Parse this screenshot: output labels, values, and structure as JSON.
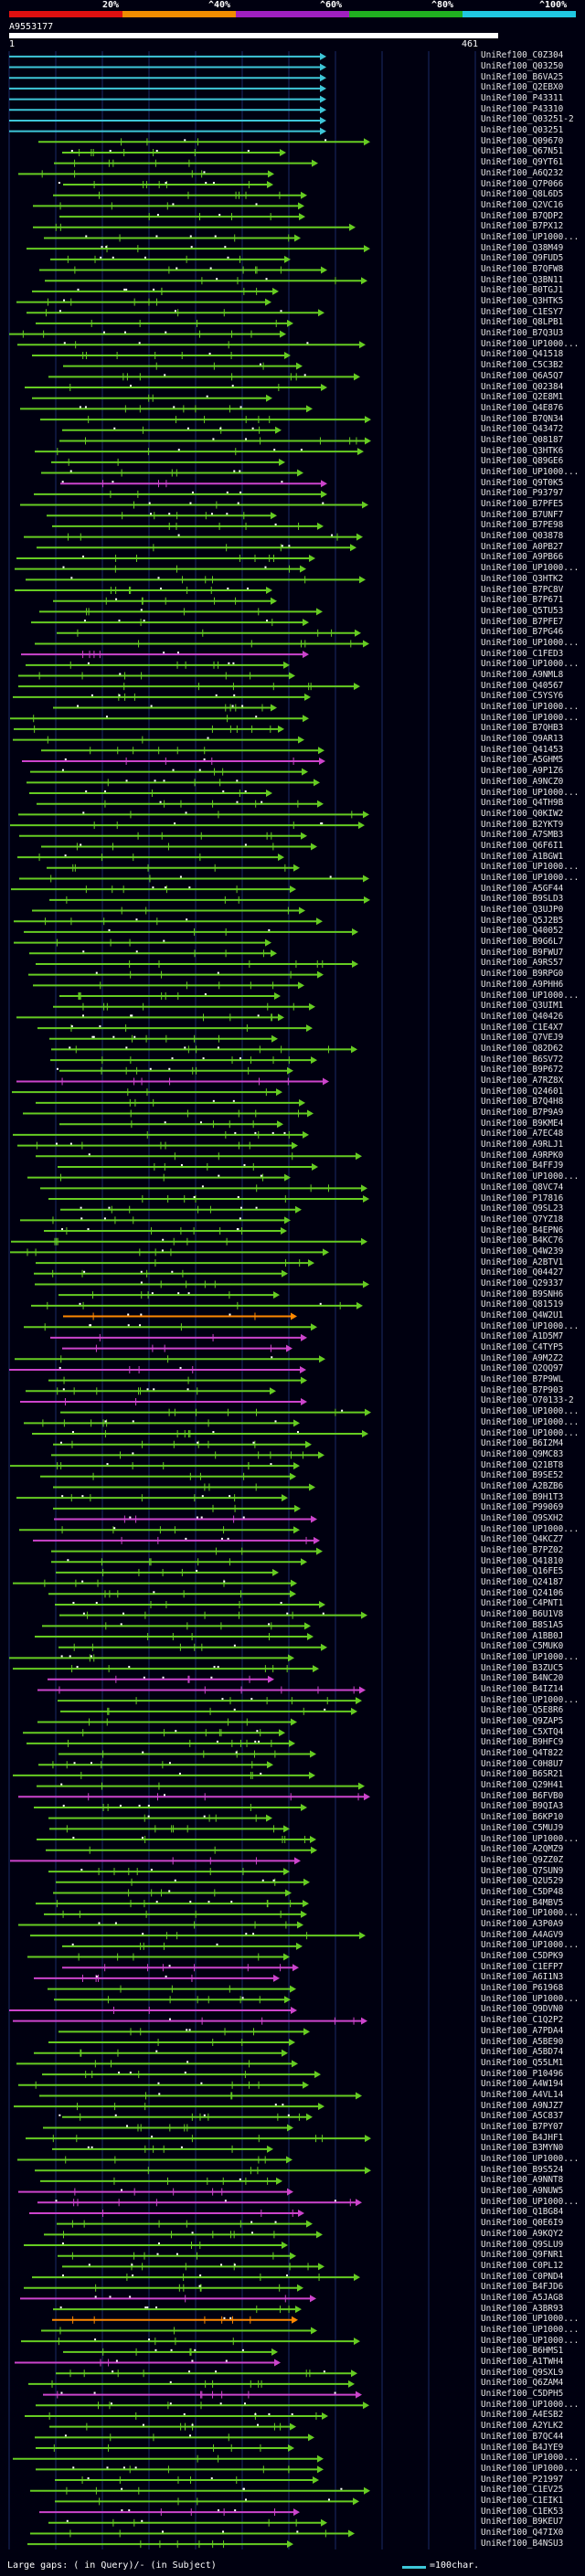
{
  "header": {
    "scale_labels": [
      "20%",
      "^40%",
      "^60%",
      "^80%",
      "^100%"
    ],
    "scale_colors": [
      "#e01010",
      "#f08c00",
      "#a020c0",
      "#20b020",
      "#20c8e0"
    ],
    "query_id": "A9553177",
    "ruler_start": "1",
    "ruler_end": "461"
  },
  "footer": {
    "note": "Large gaps: ( in Query)/- (in Subject)",
    "legend": "=100char."
  },
  "colors": {
    "identity_100": "#3ec6d8",
    "identity_80": "#66cc22",
    "identity_60": "#cc44cc",
    "identity_40": "#ff8800",
    "gridline": "#1a2a66"
  },
  "hits": [
    {
      "label": "UniRef100_C0Z304",
      "color": "cyan"
    },
    {
      "label": "UniRef100_Q03250",
      "color": "cyan"
    },
    {
      "label": "UniRef100_B6VA25",
      "color": "cyan"
    },
    {
      "label": "UniRef100_Q2EBX0",
      "color": "cyan"
    },
    {
      "label": "UniRef100_P43311",
      "color": "cyan"
    },
    {
      "label": "UniRef100_P43310",
      "color": "cyan"
    },
    {
      "label": "UniRef100_Q03251-2",
      "color": "cyan"
    },
    {
      "label": "UniRef100_Q03251",
      "color": "cyan"
    },
    {
      "label": "UniRef100_Q09670",
      "color": "green"
    },
    {
      "label": "UniRef100_Q67N51",
      "color": "green"
    },
    {
      "label": "UniRef100_Q9YT61",
      "color": "green"
    },
    {
      "label": "UniRef100_A6Q232",
      "color": "green"
    },
    {
      "label": "UniRef100_Q7P066",
      "color": "green"
    },
    {
      "label": "UniRef100_Q8L6D5",
      "color": "green"
    },
    {
      "label": "UniRef100_Q2VC16",
      "color": "green"
    },
    {
      "label": "UniRef100_B7QDP2",
      "color": "green"
    },
    {
      "label": "UniRef100_B7PX12",
      "color": "green"
    },
    {
      "label": "UniRef100_UP1000...",
      "color": "green"
    },
    {
      "label": "UniRef100_Q38M49",
      "color": "green"
    },
    {
      "label": "UniRef100_Q9FUD5",
      "color": "green"
    },
    {
      "label": "UniRef100_B7QFW8",
      "color": "green"
    },
    {
      "label": "UniRef100_Q3BN11",
      "color": "green"
    },
    {
      "label": "UniRef100_B0TGJ1",
      "color": "green"
    },
    {
      "label": "UniRef100_Q3HTK5",
      "color": "green"
    },
    {
      "label": "UniRef100_C1ESY7",
      "color": "green"
    },
    {
      "label": "UniRef100_Q8LPB1",
      "color": "green"
    },
    {
      "label": "UniRef100_B7Q3U3",
      "color": "green"
    },
    {
      "label": "UniRef100_UP1000...",
      "color": "green"
    },
    {
      "label": "UniRef100_Q41518",
      "color": "green"
    },
    {
      "label": "UniRef100_C5C3B2",
      "color": "green"
    },
    {
      "label": "UniRef100_Q6A5Q7",
      "color": "green"
    },
    {
      "label": "UniRef100_Q02384",
      "color": "green"
    },
    {
      "label": "UniRef100_Q2E8M1",
      "color": "green"
    },
    {
      "label": "UniRef100_Q4E876",
      "color": "green"
    },
    {
      "label": "UniRef100_B7QN34",
      "color": "green"
    },
    {
      "label": "UniRef100_Q43472",
      "color": "green"
    },
    {
      "label": "UniRef100_Q08187",
      "color": "green"
    },
    {
      "label": "UniRef100_Q3HTK6",
      "color": "green"
    },
    {
      "label": "UniRef100_Q89GE6",
      "color": "green"
    },
    {
      "label": "UniRef100_UP1000...",
      "color": "green"
    },
    {
      "label": "UniRef100_Q9T0K5",
      "color": "magenta"
    },
    {
      "label": "UniRef100_P93797",
      "color": "green"
    },
    {
      "label": "UniRef100_B7PFE5",
      "color": "green"
    },
    {
      "label": "UniRef100_B7UNF7",
      "color": "green"
    },
    {
      "label": "UniRef100_B7PE98",
      "color": "green"
    },
    {
      "label": "UniRef100_Q03878",
      "color": "green"
    },
    {
      "label": "UniRef100_A0PB27",
      "color": "green"
    },
    {
      "label": "UniRef100_A9PB66",
      "color": "green"
    },
    {
      "label": "UniRef100_UP1000...",
      "color": "green"
    },
    {
      "label": "UniRef100_Q3HTK2",
      "color": "green"
    },
    {
      "label": "UniRef100_B7PC8V",
      "color": "green"
    },
    {
      "label": "UniRef100_B7P671",
      "color": "green"
    },
    {
      "label": "UniRef100_Q5TU53",
      "color": "green"
    },
    {
      "label": "UniRef100_B7PFE7",
      "color": "green"
    },
    {
      "label": "UniRef100_B7PG46",
      "color": "green"
    },
    {
      "label": "UniRef100_UP1000...",
      "color": "green"
    },
    {
      "label": "UniRef100_C1FED3",
      "color": "magenta"
    },
    {
      "label": "UniRef100_UP1000...",
      "color": "green"
    },
    {
      "label": "UniRef100_A9NML8",
      "color": "green"
    },
    {
      "label": "UniRef100_Q40567",
      "color": "green"
    },
    {
      "label": "UniRef100_C5YSY6",
      "color": "green"
    },
    {
      "label": "UniRef100_UP1000...",
      "color": "green"
    },
    {
      "label": "UniRef100_UP1000...",
      "color": "green"
    },
    {
      "label": "UniRef100_B7QHB3",
      "color": "green"
    },
    {
      "label": "UniRef100_Q9AR13",
      "color": "green"
    },
    {
      "label": "UniRef100_Q41453",
      "color": "green"
    },
    {
      "label": "UniRef100_A5GHM5",
      "color": "magenta"
    },
    {
      "label": "UniRef100_A9P1Z6",
      "color": "green"
    },
    {
      "label": "UniRef100_A9NCZ0",
      "color": "green"
    },
    {
      "label": "UniRef100_UP1000...",
      "color": "green"
    },
    {
      "label": "UniRef100_Q4TH9B",
      "color": "green"
    },
    {
      "label": "UniRef100_Q0KIW2",
      "color": "green"
    },
    {
      "label": "UniRef100_B2YKT9",
      "color": "green"
    },
    {
      "label": "UniRef100_A7SMB3",
      "color": "green"
    },
    {
      "label": "UniRef100_Q6F6I1",
      "color": "green"
    },
    {
      "label": "UniRef100_A1BGW1",
      "color": "green"
    },
    {
      "label": "UniRef100_UP1000...",
      "color": "green"
    },
    {
      "label": "UniRef100_UP1000...",
      "color": "green"
    },
    {
      "label": "UniRef100_A5GF44",
      "color": "green"
    },
    {
      "label": "UniRef100_B9SLD3",
      "color": "green"
    },
    {
      "label": "UniRef100_Q3UJP0",
      "color": "green"
    },
    {
      "label": "UniRef100_Q5J2B5",
      "color": "green"
    },
    {
      "label": "UniRef100_Q40052",
      "color": "green"
    },
    {
      "label": "UniRef100_B9G6L7",
      "color": "green"
    },
    {
      "label": "UniRef100_B9FWU7",
      "color": "green"
    },
    {
      "label": "UniRef100_A9RS57",
      "color": "green"
    },
    {
      "label": "UniRef100_B9RPG0",
      "color": "green"
    },
    {
      "label": "UniRef100_A9PHH6",
      "color": "green"
    },
    {
      "label": "UniRef100_UP1000...",
      "color": "green"
    },
    {
      "label": "UniRef100_Q3UIM1",
      "color": "green"
    },
    {
      "label": "UniRef100_Q40426",
      "color": "green"
    },
    {
      "label": "UniRef100_C1E4X7",
      "color": "green"
    },
    {
      "label": "UniRef100_Q7VEJ9",
      "color": "green"
    },
    {
      "label": "UniRef100_Q82D62",
      "color": "green"
    },
    {
      "label": "UniRef100_B6SV72",
      "color": "green"
    },
    {
      "label": "UniRef100_B9P672",
      "color": "green"
    },
    {
      "label": "UniRef100_A7RZ8X",
      "color": "magenta"
    },
    {
      "label": "UniRef100_Q24601",
      "color": "green"
    },
    {
      "label": "UniRef100_B7Q4H8",
      "color": "green"
    },
    {
      "label": "UniRef100_B7P9A9",
      "color": "green"
    },
    {
      "label": "UniRef100_B9KME4",
      "color": "green"
    },
    {
      "label": "UniRef100_A7EC48",
      "color": "green"
    },
    {
      "label": "UniRef100_A9RLJ1",
      "color": "green"
    },
    {
      "label": "UniRef100_A9RPK0",
      "color": "green"
    },
    {
      "label": "UniRef100_B4FFJ9",
      "color": "green"
    },
    {
      "label": "UniRef100_UP1000...",
      "color": "green"
    },
    {
      "label": "UniRef100_Q8VC74",
      "color": "green"
    },
    {
      "label": "UniRef100_P17816",
      "color": "green"
    },
    {
      "label": "UniRef100_Q9SL23",
      "color": "green"
    },
    {
      "label": "UniRef100_Q7YZ18",
      "color": "green"
    },
    {
      "label": "UniRef100_B4EPN6",
      "color": "green"
    },
    {
      "label": "UniRef100_B4KC76",
      "color": "green"
    },
    {
      "label": "UniRef100_Q4W239",
      "color": "green"
    },
    {
      "label": "UniRef100_A2BTV1",
      "color": "green"
    },
    {
      "label": "UniRef100_Q04427",
      "color": "green"
    },
    {
      "label": "UniRef100_Q29337",
      "color": "green"
    },
    {
      "label": "UniRef100_B9SNH6",
      "color": "green"
    },
    {
      "label": "UniRef100_Q81519",
      "color": "green"
    },
    {
      "label": "UniRef100_Q4W2U1",
      "color": "orange"
    },
    {
      "label": "UniRef100_UP1000...",
      "color": "green"
    },
    {
      "label": "UniRef100_A1D5M7",
      "color": "magenta"
    },
    {
      "label": "UniRef100_C4TYP5",
      "color": "magenta"
    },
    {
      "label": "UniRef100_A9M2Z2",
      "color": "green"
    },
    {
      "label": "UniRef100_Q2QQ97",
      "color": "magenta"
    },
    {
      "label": "UniRef100_B7P9WL",
      "color": "green"
    },
    {
      "label": "UniRef100_B7P903",
      "color": "green"
    },
    {
      "label": "UniRef100_O70133-2",
      "color": "magenta"
    },
    {
      "label": "UniRef100_UP1000...",
      "color": "green"
    },
    {
      "label": "UniRef100_UP1000...",
      "color": "green"
    },
    {
      "label": "UniRef100_UP1000...",
      "color": "green"
    },
    {
      "label": "UniRef100_B6I2M4",
      "color": "green"
    },
    {
      "label": "UniRef100_Q9MC83",
      "color": "green"
    },
    {
      "label": "UniRef100_Q21BT8",
      "color": "green"
    },
    {
      "label": "UniRef100_B9SE52",
      "color": "green"
    },
    {
      "label": "UniRef100_A2BZB6",
      "color": "green"
    },
    {
      "label": "UniRef100_B9H1T3",
      "color": "green"
    },
    {
      "label": "UniRef100_P99069",
      "color": "green"
    },
    {
      "label": "UniRef100_Q9SXH2",
      "color": "magenta"
    },
    {
      "label": "UniRef100_UP1000...",
      "color": "green"
    },
    {
      "label": "UniRef100_Q4KCZ7",
      "color": "magenta"
    },
    {
      "label": "UniRef100_B7PZ02",
      "color": "green"
    },
    {
      "label": "UniRef100_Q41810",
      "color": "green"
    },
    {
      "label": "UniRef100_Q16FE5",
      "color": "green"
    },
    {
      "label": "UniRef100_Q24187",
      "color": "green"
    },
    {
      "label": "UniRef100_Q24106",
      "color": "green"
    },
    {
      "label": "UniRef100_C4PNT1",
      "color": "green"
    },
    {
      "label": "UniRef100_B6U1V8",
      "color": "green"
    },
    {
      "label": "UniRef100_B8S1A5",
      "color": "green"
    },
    {
      "label": "UniRef100_A1BB0J",
      "color": "green"
    },
    {
      "label": "UniRef100_C5MUK0",
      "color": "green"
    },
    {
      "label": "UniRef100_UP1000...",
      "color": "green"
    },
    {
      "label": "UniRef100_B3ZUC5",
      "color": "green"
    },
    {
      "label": "UniRef100_B4NC20",
      "color": "magenta"
    },
    {
      "label": "UniRef100_B4IZ14",
      "color": "magenta"
    },
    {
      "label": "UniRef100_UP1000...",
      "color": "green"
    },
    {
      "label": "UniRef100_Q5E8R6",
      "color": "green"
    },
    {
      "label": "UniRef100_Q9ZAP5",
      "color": "green"
    },
    {
      "label": "UniRef100_C5XTQ4",
      "color": "green"
    },
    {
      "label": "UniRef100_B9HFC9",
      "color": "green"
    },
    {
      "label": "UniRef100_Q4T822",
      "color": "green"
    },
    {
      "label": "UniRef100_C0H8U7",
      "color": "green"
    },
    {
      "label": "UniRef100_B6SR21",
      "color": "green"
    },
    {
      "label": "UniRef100_Q29H41",
      "color": "green"
    },
    {
      "label": "UniRef100_B6FVB0",
      "color": "magenta"
    },
    {
      "label": "UniRef100_B9QIA3",
      "color": "green"
    },
    {
      "label": "UniRef100_B6KP10",
      "color": "green"
    },
    {
      "label": "UniRef100_C5MUJ9",
      "color": "green"
    },
    {
      "label": "UniRef100_UP1000...",
      "color": "green"
    },
    {
      "label": "UniRef100_A2QMZ9",
      "color": "green"
    },
    {
      "label": "UniRef100_Q9ZZ0Z",
      "color": "magenta"
    },
    {
      "label": "UniRef100_Q7SUN9",
      "color": "green"
    },
    {
      "label": "UniRef100_Q2U529",
      "color": "green"
    },
    {
      "label": "UniRef100_C5DP48",
      "color": "green"
    },
    {
      "label": "UniRef100_B4MBV5",
      "color": "green"
    },
    {
      "label": "UniRef100_UP1000...",
      "color": "green"
    },
    {
      "label": "UniRef100_A3P0A9",
      "color": "green"
    },
    {
      "label": "UniRef100_A4AGV9",
      "color": "green"
    },
    {
      "label": "UniRef100_UP1000...",
      "color": "green"
    },
    {
      "label": "UniRef100_C5DPK9",
      "color": "green"
    },
    {
      "label": "UniRef100_C1EFP7",
      "color": "magenta"
    },
    {
      "label": "UniRef100_A6I1N3",
      "color": "magenta"
    },
    {
      "label": "UniRef100_P61968",
      "color": "green"
    },
    {
      "label": "UniRef100_UP1000...",
      "color": "green"
    },
    {
      "label": "UniRef100_Q9DVN0",
      "color": "magenta"
    },
    {
      "label": "UniRef100_C1Q2P2",
      "color": "magenta"
    },
    {
      "label": "UniRef100_A7PDA4",
      "color": "green"
    },
    {
      "label": "UniRef100_A5BE90",
      "color": "green"
    },
    {
      "label": "UniRef100_A5BD74",
      "color": "green"
    },
    {
      "label": "UniRef100_Q55LM1",
      "color": "green"
    },
    {
      "label": "UniRef100_P10496",
      "color": "green"
    },
    {
      "label": "UniRef100_A4W194",
      "color": "green"
    },
    {
      "label": "UniRef100_A4VL14",
      "color": "green"
    },
    {
      "label": "UniRef100_A9NJZ7",
      "color": "green"
    },
    {
      "label": "UniRef100_A5C837",
      "color": "green"
    },
    {
      "label": "UniRef100_B7PY07",
      "color": "green"
    },
    {
      "label": "UniRef100_B4JHF1",
      "color": "green"
    },
    {
      "label": "UniRef100_B3MYN0",
      "color": "green"
    },
    {
      "label": "UniRef100_UP1000...",
      "color": "green"
    },
    {
      "label": "UniRef100_B9S524",
      "color": "green"
    },
    {
      "label": "UniRef100_A9NNT8",
      "color": "green"
    },
    {
      "label": "UniRef100_A9NUW5",
      "color": "magenta"
    },
    {
      "label": "UniRef100_UP1000...",
      "color": "magenta"
    },
    {
      "label": "UniRef100_Q1BG84",
      "color": "magenta"
    },
    {
      "label": "UniRef100_Q0E6I9",
      "color": "green"
    },
    {
      "label": "UniRef100_A9KQY2",
      "color": "green"
    },
    {
      "label": "UniRef100_Q9SLU9",
      "color": "green"
    },
    {
      "label": "UniRef100_Q9FNR1",
      "color": "green"
    },
    {
      "label": "UniRef100_C0PL12",
      "color": "green"
    },
    {
      "label": "UniRef100_C0PND4",
      "color": "green"
    },
    {
      "label": "UniRef100_B4FJD6",
      "color": "green"
    },
    {
      "label": "UniRef100_A5JAG8",
      "color": "magenta"
    },
    {
      "label": "UniRef100_A3BR93",
      "color": "green"
    },
    {
      "label": "UniRef100_UP1000...",
      "color": "orange"
    },
    {
      "label": "UniRef100_UP1000...",
      "color": "green"
    },
    {
      "label": "UniRef100_UP1000...",
      "color": "green"
    },
    {
      "label": "UniRef100_B6HMS1",
      "color": "green"
    },
    {
      "label": "UniRef100_A1TWH4",
      "color": "magenta"
    },
    {
      "label": "UniRef100_Q9SXL9",
      "color": "green"
    },
    {
      "label": "UniRef100_Q6ZAM4",
      "color": "green"
    },
    {
      "label": "UniRef100_C5DPH5",
      "color": "magenta"
    },
    {
      "label": "UniRef100_UP1000...",
      "color": "green"
    },
    {
      "label": "UniRef100_A4ESB2",
      "color": "green"
    },
    {
      "label": "UniRef100_A2YLK2",
      "color": "green"
    },
    {
      "label": "UniRef100_B7QC44",
      "color": "green"
    },
    {
      "label": "UniRef100_B4JYE9",
      "color": "green"
    },
    {
      "label": "UniRef100_UP1000...",
      "color": "green"
    },
    {
      "label": "UniRef100_UP1000...",
      "color": "green"
    },
    {
      "label": "UniRef100_P21997",
      "color": "green"
    },
    {
      "label": "UniRef100_C1EV25",
      "color": "green"
    },
    {
      "label": "UniRef100_C1EIK1",
      "color": "green"
    },
    {
      "label": "UniRef100_C1EK53",
      "color": "magenta"
    },
    {
      "label": "UniRef100_B9KEU7",
      "color": "green"
    },
    {
      "label": "UniRef100_Q47IX0",
      "color": "green"
    },
    {
      "label": "UniRef100_B4NSU3",
      "color": "green"
    }
  ]
}
